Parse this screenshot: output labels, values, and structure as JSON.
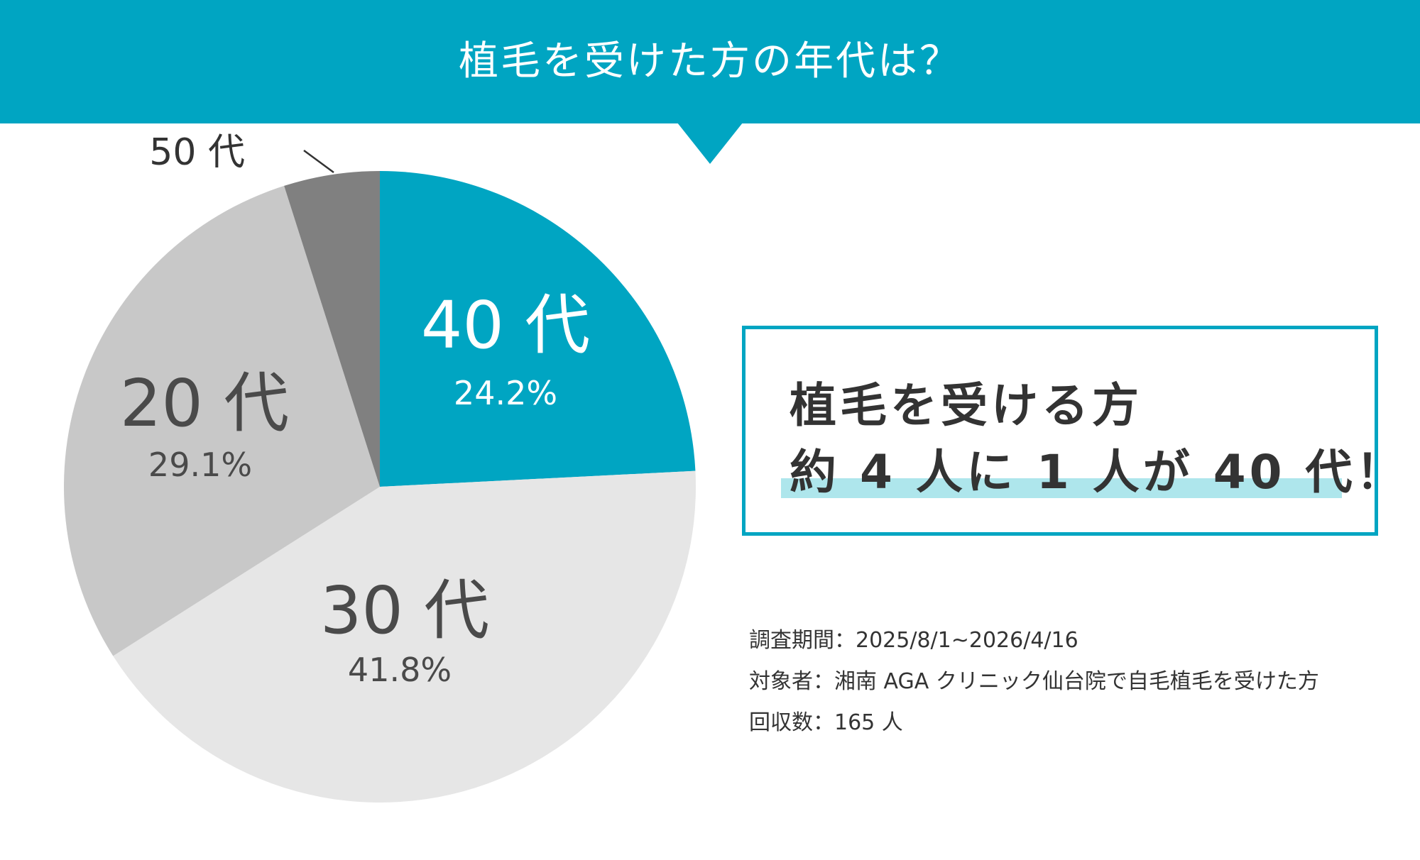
{
  "header": {
    "title": "植毛を受けた方の年代は？"
  },
  "chart_data": {
    "type": "pie",
    "slices": [
      {
        "label": "40 代",
        "percent_label": "24.2%",
        "value": 24.2,
        "color": "#00a5c2",
        "text_color": "#ffffff"
      },
      {
        "label": "30 代",
        "percent_label": "41.8%",
        "value": 41.8,
        "color": "#e6e6e6",
        "text_color": "#4a4a4a"
      },
      {
        "label": "20 代",
        "percent_label": "29.1%",
        "value": 29.1,
        "color": "#c8c8c8",
        "text_color": "#4a4a4a"
      },
      {
        "label": "50 代",
        "percent_label": "",
        "value": 4.9,
        "color": "#808080",
        "text_color": "#333333"
      }
    ],
    "start": "12 o'clock",
    "direction": "clockwise"
  },
  "callout": {
    "line1": "植毛を受ける方",
    "line2": "約 4 人に 1 人が 40 代！",
    "border_color": "#00a5c2",
    "highlight_color": "#aee6ec"
  },
  "survey": {
    "period": "調査期間：2025/8/1~2026/4/16",
    "subjects": "対象者：湘南 AGA クリニック仙台院で自毛植毛を受けた方",
    "responses": "回収数：165 人"
  }
}
